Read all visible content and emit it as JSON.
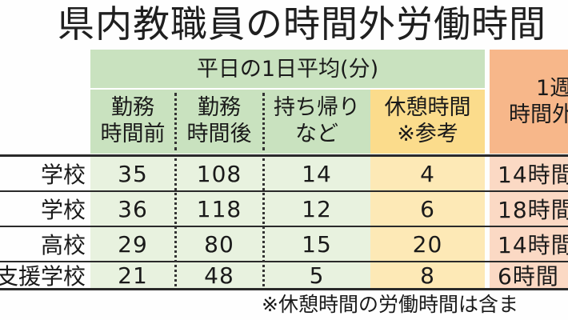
{
  "title": "県内教職員の時間外労働時間",
  "header": {
    "group_label": "平日の1日平均(分)",
    "columns": [
      {
        "line1": "勤務",
        "line2": "時間前"
      },
      {
        "line1": "勤務",
        "line2": "時間後"
      },
      {
        "line1": "持ち帰り",
        "line2": "など"
      },
      {
        "line1": "休憩時間",
        "line2": "※参考"
      }
    ],
    "weekly": {
      "line1": "1週",
      "line2": "時間外"
    }
  },
  "rows": [
    {
      "label": "学校",
      "before": "35",
      "after": "108",
      "takehome": "14",
      "break": "4",
      "weekly": "14時間"
    },
    {
      "label": "学校",
      "before": "36",
      "after": "118",
      "takehome": "12",
      "break": "6",
      "weekly": "18時間"
    },
    {
      "label": "高校",
      "before": "29",
      "after": "80",
      "takehome": "15",
      "break": "20",
      "weekly": "14時間"
    },
    {
      "label": "支援学校",
      "before": "21",
      "after": "48",
      "takehome": "5",
      "break": "8",
      "weekly": "6時間"
    }
  ],
  "footnote": "※休憩時間の労働時間は含ま",
  "colors": {
    "green_header": "#c9e2bf",
    "green_body": "#e8f2df",
    "yellow_header": "#fbdc8c",
    "yellow_body": "#fde9b6",
    "pink_header": "#f7b78a",
    "pink_body": "#fbd9c4"
  }
}
